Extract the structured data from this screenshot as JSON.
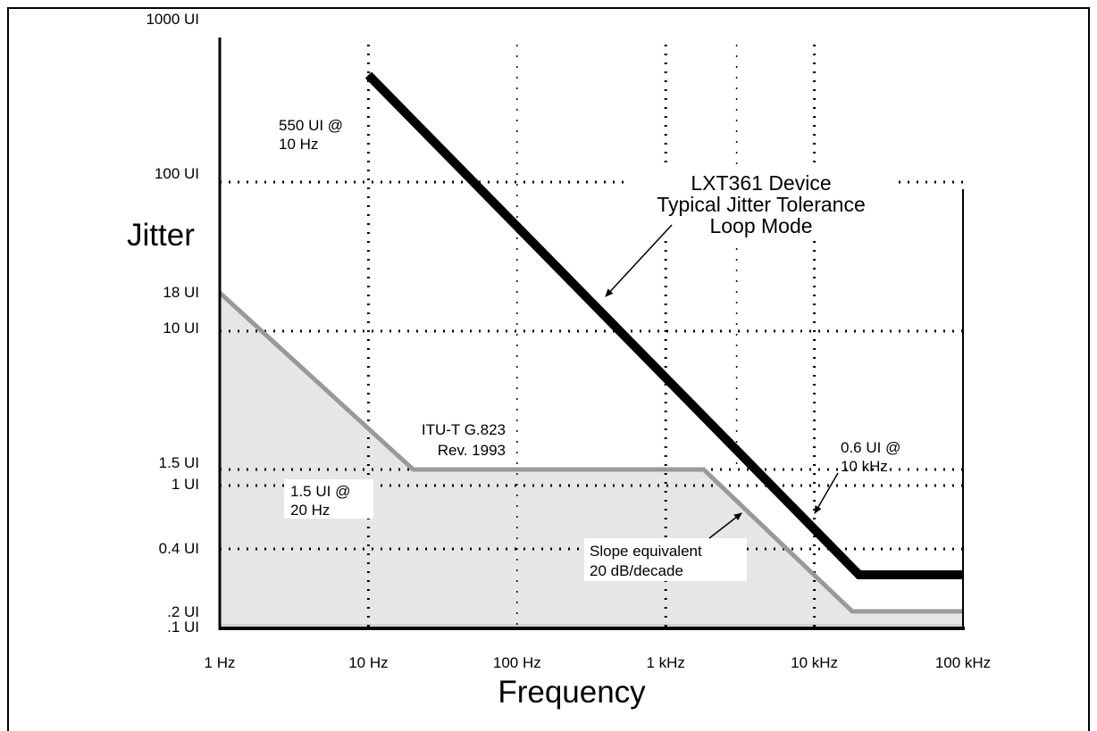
{
  "chart_data": {
    "type": "line",
    "xscale": "log",
    "yscale": "log",
    "xlabel": "Frequency",
    "ylabel": "Jitter",
    "x_ticks": [
      {
        "value": 1,
        "label": "1 Hz"
      },
      {
        "value": 10,
        "label": "10 Hz"
      },
      {
        "value": 100,
        "label": "100 Hz"
      },
      {
        "value": 1000,
        "label": "1 kHz"
      },
      {
        "value": 10000,
        "label": "10 kHz"
      },
      {
        "value": 100000,
        "label": "100 kHz"
      }
    ],
    "y_ticks": [
      {
        "value": 1000,
        "label": "1000 UI"
      },
      {
        "value": 100,
        "label": "100 UI"
      },
      {
        "value": 18,
        "label": "18 UI"
      },
      {
        "value": 10,
        "label": "10 UI"
      },
      {
        "value": 1.5,
        "label": "1.5 UI"
      },
      {
        "value": 1,
        "label": "1 UI"
      },
      {
        "value": 0.4,
        "label": "0.4 UI"
      },
      {
        "value": 0.2,
        "label": ".2 UI"
      },
      {
        "value": 0.1,
        "label": ".1 UI"
      }
    ],
    "xlim": [
      1,
      100000
    ],
    "ylim": [
      0.1,
      1000
    ],
    "grid": true,
    "series": [
      {
        "name": "LXT361 Device Typical Jitter Tolerance Loop Mode",
        "color": "#000000",
        "points": [
          [
            10,
            550
          ],
          [
            20000,
            0.3
          ],
          [
            100000,
            0.3
          ]
        ]
      },
      {
        "name": "ITU-T G.823 Rev. 1993",
        "color": "#999999",
        "fill": "#e6e6e6",
        "points": [
          [
            1,
            18
          ],
          [
            20,
            1.5
          ],
          [
            1800,
            1.5
          ],
          [
            18000,
            0.2
          ],
          [
            100000,
            0.2
          ]
        ]
      }
    ],
    "annotations": [
      {
        "id": "a550",
        "lines": [
          "550 UI @",
          "10 Hz"
        ]
      },
      {
        "id": "lxt",
        "lines": [
          "LXT361 Device",
          "Typical Jitter Tolerance",
          "Loop Mode"
        ]
      },
      {
        "id": "itu",
        "lines": [
          "ITU-T G.823",
          "Rev. 1993"
        ]
      },
      {
        "id": "a15",
        "lines": [
          "1.5 UI @",
          "20 Hz"
        ]
      },
      {
        "id": "a06",
        "lines": [
          "0.6 UI @",
          "10 kHz"
        ]
      },
      {
        "id": "slope",
        "lines": [
          "Slope equivalent",
          "20 dB/decade"
        ]
      }
    ]
  }
}
